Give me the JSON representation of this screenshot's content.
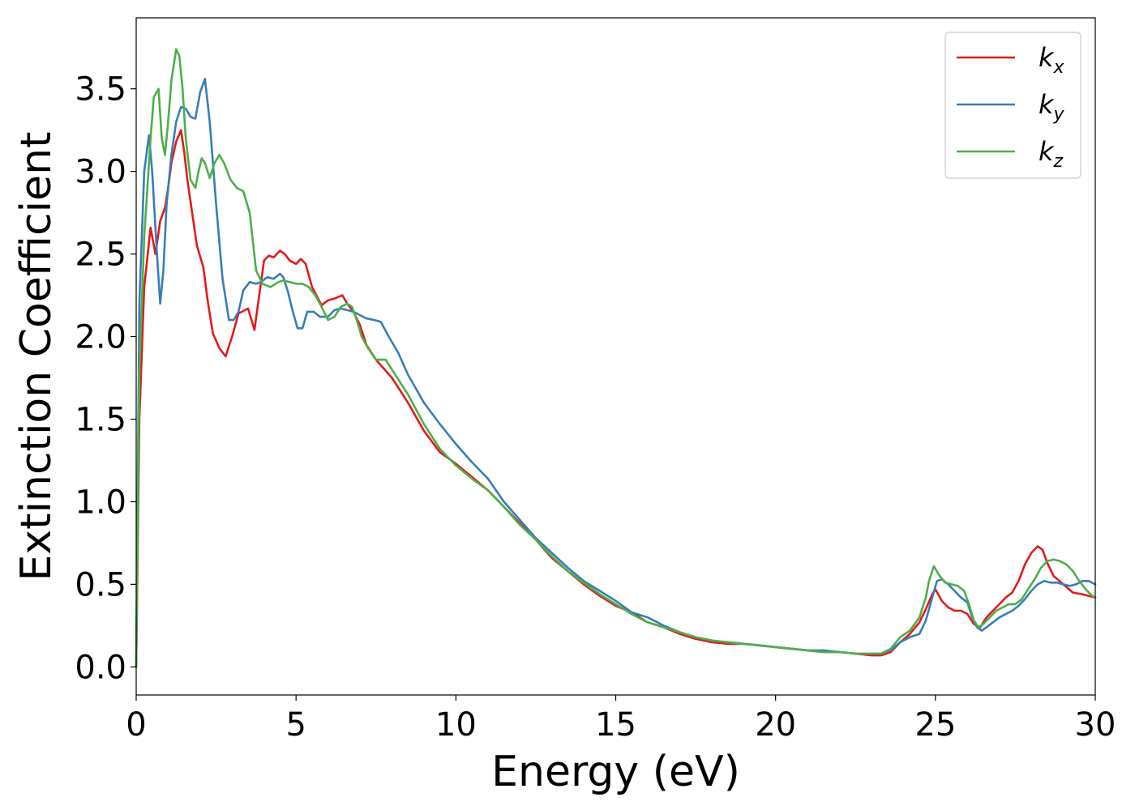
{
  "chart_data": {
    "type": "line",
    "title": "",
    "xlabel": "Energy (eV)",
    "ylabel": "Extinction Coefficient",
    "xlim": [
      0,
      30
    ],
    "ylim": [
      -0.17,
      3.93
    ],
    "xticks": [
      0,
      5,
      10,
      15,
      20,
      25,
      30
    ],
    "xtick_labels": [
      "0",
      "5",
      "10",
      "15",
      "20",
      "25",
      "30"
    ],
    "yticks": [
      0.0,
      0.5,
      1.0,
      1.5,
      2.0,
      2.5,
      3.0,
      3.5
    ],
    "ytick_labels": [
      "0.0",
      "0.5",
      "1.0",
      "1.5",
      "2.0",
      "2.5",
      "3.0",
      "3.5"
    ],
    "grid": false,
    "legend_position": "top-right",
    "series": [
      {
        "name": "k_x",
        "label_base": "k",
        "label_sub": "x",
        "color": "#e41a1c",
        "x": [
          0,
          0.1,
          0.25,
          0.45,
          0.6,
          0.75,
          0.9,
          1.0,
          1.1,
          1.25,
          1.4,
          1.5,
          1.6,
          1.75,
          1.9,
          2.1,
          2.25,
          2.4,
          2.6,
          2.8,
          3.0,
          3.2,
          3.5,
          3.7,
          3.8,
          4.0,
          4.15,
          4.3,
          4.5,
          4.65,
          4.8,
          5.0,
          5.15,
          5.3,
          5.5,
          5.8,
          6.0,
          6.2,
          6.45,
          6.6,
          6.8,
          7.0,
          7.2,
          7.5,
          8.0,
          8.5,
          9.0,
          9.5,
          10.0,
          10.5,
          11.0,
          11.5,
          12.0,
          12.5,
          13.0,
          13.5,
          14.0,
          14.5,
          15.0,
          15.5,
          16.0,
          16.5,
          17.0,
          17.5,
          18.0,
          18.5,
          19.0,
          19.5,
          20.0,
          20.5,
          21.0,
          21.5,
          22.0,
          22.5,
          23.0,
          23.3,
          23.6,
          23.9,
          24.2,
          24.5,
          24.7,
          24.9,
          25.0,
          25.2,
          25.4,
          25.6,
          25.8,
          26.0,
          26.2,
          26.4,
          26.6,
          26.8,
          27.0,
          27.2,
          27.4,
          27.6,
          27.8,
          28.0,
          28.2,
          28.35,
          28.5,
          28.7,
          29.0,
          29.3,
          29.6,
          29.8,
          30.0
        ],
        "values": [
          0.0,
          1.5,
          2.3,
          2.66,
          2.5,
          2.7,
          2.78,
          2.9,
          3.05,
          3.18,
          3.25,
          3.12,
          2.95,
          2.75,
          2.55,
          2.42,
          2.2,
          2.02,
          1.93,
          1.88,
          2.0,
          2.14,
          2.17,
          2.04,
          2.18,
          2.46,
          2.49,
          2.48,
          2.52,
          2.5,
          2.46,
          2.44,
          2.47,
          2.44,
          2.3,
          2.19,
          2.22,
          2.23,
          2.25,
          2.2,
          2.15,
          2.07,
          1.95,
          1.86,
          1.75,
          1.6,
          1.43,
          1.3,
          1.23,
          1.15,
          1.07,
          0.97,
          0.87,
          0.77,
          0.66,
          0.58,
          0.5,
          0.43,
          0.37,
          0.33,
          0.27,
          0.24,
          0.2,
          0.17,
          0.15,
          0.14,
          0.14,
          0.13,
          0.12,
          0.11,
          0.1,
          0.09,
          0.09,
          0.08,
          0.07,
          0.07,
          0.09,
          0.15,
          0.2,
          0.27,
          0.35,
          0.44,
          0.47,
          0.4,
          0.36,
          0.34,
          0.34,
          0.32,
          0.26,
          0.24,
          0.3,
          0.34,
          0.38,
          0.42,
          0.45,
          0.52,
          0.62,
          0.69,
          0.73,
          0.71,
          0.63,
          0.55,
          0.5,
          0.45,
          0.44,
          0.43,
          0.42
        ]
      },
      {
        "name": "k_y",
        "label_base": "k",
        "label_sub": "y",
        "color": "#377eb8",
        "x": [
          0,
          0.1,
          0.25,
          0.4,
          0.5,
          0.65,
          0.75,
          0.85,
          0.95,
          1.1,
          1.25,
          1.4,
          1.55,
          1.7,
          1.85,
          2.0,
          2.15,
          2.3,
          2.5,
          2.7,
          2.9,
          3.05,
          3.2,
          3.35,
          3.55,
          3.75,
          3.9,
          4.1,
          4.3,
          4.5,
          4.6,
          4.75,
          4.9,
          5.05,
          5.2,
          5.35,
          5.55,
          5.75,
          6.0,
          6.2,
          6.4,
          6.6,
          6.8,
          7.0,
          7.2,
          7.45,
          7.65,
          7.9,
          8.2,
          8.5,
          9.0,
          9.5,
          10.0,
          10.5,
          11.0,
          11.5,
          12.0,
          12.5,
          13.0,
          13.5,
          14.0,
          14.5,
          15.0,
          15.5,
          16.0,
          16.5,
          17.0,
          17.5,
          18.0,
          18.5,
          19.0,
          19.5,
          20.0,
          20.5,
          21.0,
          21.5,
          22.0,
          22.5,
          23.0,
          23.3,
          23.6,
          23.9,
          24.2,
          24.5,
          24.7,
          24.9,
          25.05,
          25.2,
          25.4,
          25.6,
          25.8,
          26.0,
          26.15,
          26.3,
          26.45,
          26.6,
          26.8,
          27.0,
          27.2,
          27.4,
          27.6,
          27.8,
          28.0,
          28.2,
          28.4,
          28.6,
          28.8,
          29.0,
          29.2,
          29.4,
          29.6,
          29.8,
          30.0
        ],
        "values": [
          0.0,
          2.2,
          3.0,
          3.22,
          3.0,
          2.5,
          2.2,
          2.4,
          2.8,
          3.1,
          3.3,
          3.39,
          3.38,
          3.33,
          3.32,
          3.48,
          3.56,
          3.3,
          2.8,
          2.35,
          2.1,
          2.1,
          2.15,
          2.28,
          2.33,
          2.32,
          2.33,
          2.36,
          2.35,
          2.38,
          2.36,
          2.27,
          2.15,
          2.05,
          2.05,
          2.15,
          2.15,
          2.12,
          2.12,
          2.16,
          2.17,
          2.16,
          2.15,
          2.13,
          2.11,
          2.1,
          2.09,
          2.0,
          1.9,
          1.77,
          1.6,
          1.47,
          1.35,
          1.24,
          1.14,
          1.0,
          0.89,
          0.78,
          0.69,
          0.6,
          0.52,
          0.46,
          0.4,
          0.33,
          0.3,
          0.25,
          0.21,
          0.18,
          0.16,
          0.15,
          0.14,
          0.13,
          0.12,
          0.11,
          0.1,
          0.1,
          0.09,
          0.08,
          0.08,
          0.08,
          0.1,
          0.15,
          0.18,
          0.2,
          0.28,
          0.42,
          0.52,
          0.53,
          0.5,
          0.46,
          0.42,
          0.39,
          0.3,
          0.24,
          0.22,
          0.24,
          0.27,
          0.3,
          0.32,
          0.34,
          0.37,
          0.41,
          0.46,
          0.5,
          0.52,
          0.51,
          0.51,
          0.5,
          0.49,
          0.5,
          0.52,
          0.52,
          0.5
        ]
      },
      {
        "name": "k_z",
        "label_base": "k",
        "label_sub": "z",
        "color": "#4daf4a",
        "x": [
          0,
          0.1,
          0.25,
          0.45,
          0.55,
          0.7,
          0.8,
          0.9,
          1.0,
          1.1,
          1.25,
          1.35,
          1.45,
          1.55,
          1.7,
          1.85,
          1.95,
          2.05,
          2.15,
          2.3,
          2.45,
          2.6,
          2.75,
          2.95,
          3.15,
          3.35,
          3.55,
          3.75,
          3.95,
          4.2,
          4.45,
          4.6,
          4.8,
          5.0,
          5.2,
          5.4,
          5.6,
          5.8,
          6.0,
          6.2,
          6.4,
          6.6,
          6.75,
          6.9,
          7.05,
          7.25,
          7.5,
          7.8,
          8.0,
          8.5,
          9.0,
          9.5,
          10.0,
          10.5,
          11.0,
          11.5,
          12.0,
          12.5,
          13.0,
          13.5,
          14.0,
          14.5,
          15.0,
          15.5,
          16.0,
          16.5,
          17.0,
          17.5,
          18.0,
          18.5,
          19.0,
          19.5,
          20.0,
          20.5,
          21.0,
          21.5,
          22.0,
          22.5,
          23.0,
          23.3,
          23.6,
          23.9,
          24.2,
          24.5,
          24.7,
          24.8,
          24.95,
          25.1,
          25.3,
          25.5,
          25.7,
          25.9,
          26.05,
          26.2,
          26.35,
          26.5,
          26.7,
          26.9,
          27.1,
          27.3,
          27.5,
          27.7,
          27.9,
          28.1,
          28.3,
          28.5,
          28.7,
          28.9,
          29.1,
          29.3,
          29.5,
          29.7,
          29.9,
          30.0
        ],
        "values": [
          0.0,
          1.8,
          2.6,
          3.2,
          3.45,
          3.5,
          3.2,
          3.1,
          3.3,
          3.55,
          3.74,
          3.7,
          3.5,
          3.2,
          2.95,
          2.9,
          3.0,
          3.08,
          3.05,
          2.96,
          3.05,
          3.1,
          3.05,
          2.95,
          2.9,
          2.88,
          2.75,
          2.4,
          2.32,
          2.3,
          2.33,
          2.34,
          2.33,
          2.32,
          2.32,
          2.3,
          2.25,
          2.18,
          2.1,
          2.12,
          2.18,
          2.2,
          2.18,
          2.1,
          2.0,
          1.93,
          1.86,
          1.86,
          1.8,
          1.65,
          1.47,
          1.32,
          1.22,
          1.14,
          1.07,
          0.97,
          0.86,
          0.77,
          0.67,
          0.58,
          0.51,
          0.44,
          0.38,
          0.32,
          0.27,
          0.24,
          0.21,
          0.18,
          0.16,
          0.15,
          0.14,
          0.13,
          0.12,
          0.11,
          0.1,
          0.09,
          0.09,
          0.08,
          0.08,
          0.08,
          0.11,
          0.18,
          0.22,
          0.3,
          0.42,
          0.52,
          0.61,
          0.56,
          0.51,
          0.5,
          0.49,
          0.46,
          0.38,
          0.28,
          0.24,
          0.26,
          0.3,
          0.34,
          0.36,
          0.38,
          0.38,
          0.41,
          0.47,
          0.53,
          0.6,
          0.64,
          0.65,
          0.64,
          0.62,
          0.58,
          0.52,
          0.47,
          0.43,
          0.42
        ]
      }
    ]
  }
}
